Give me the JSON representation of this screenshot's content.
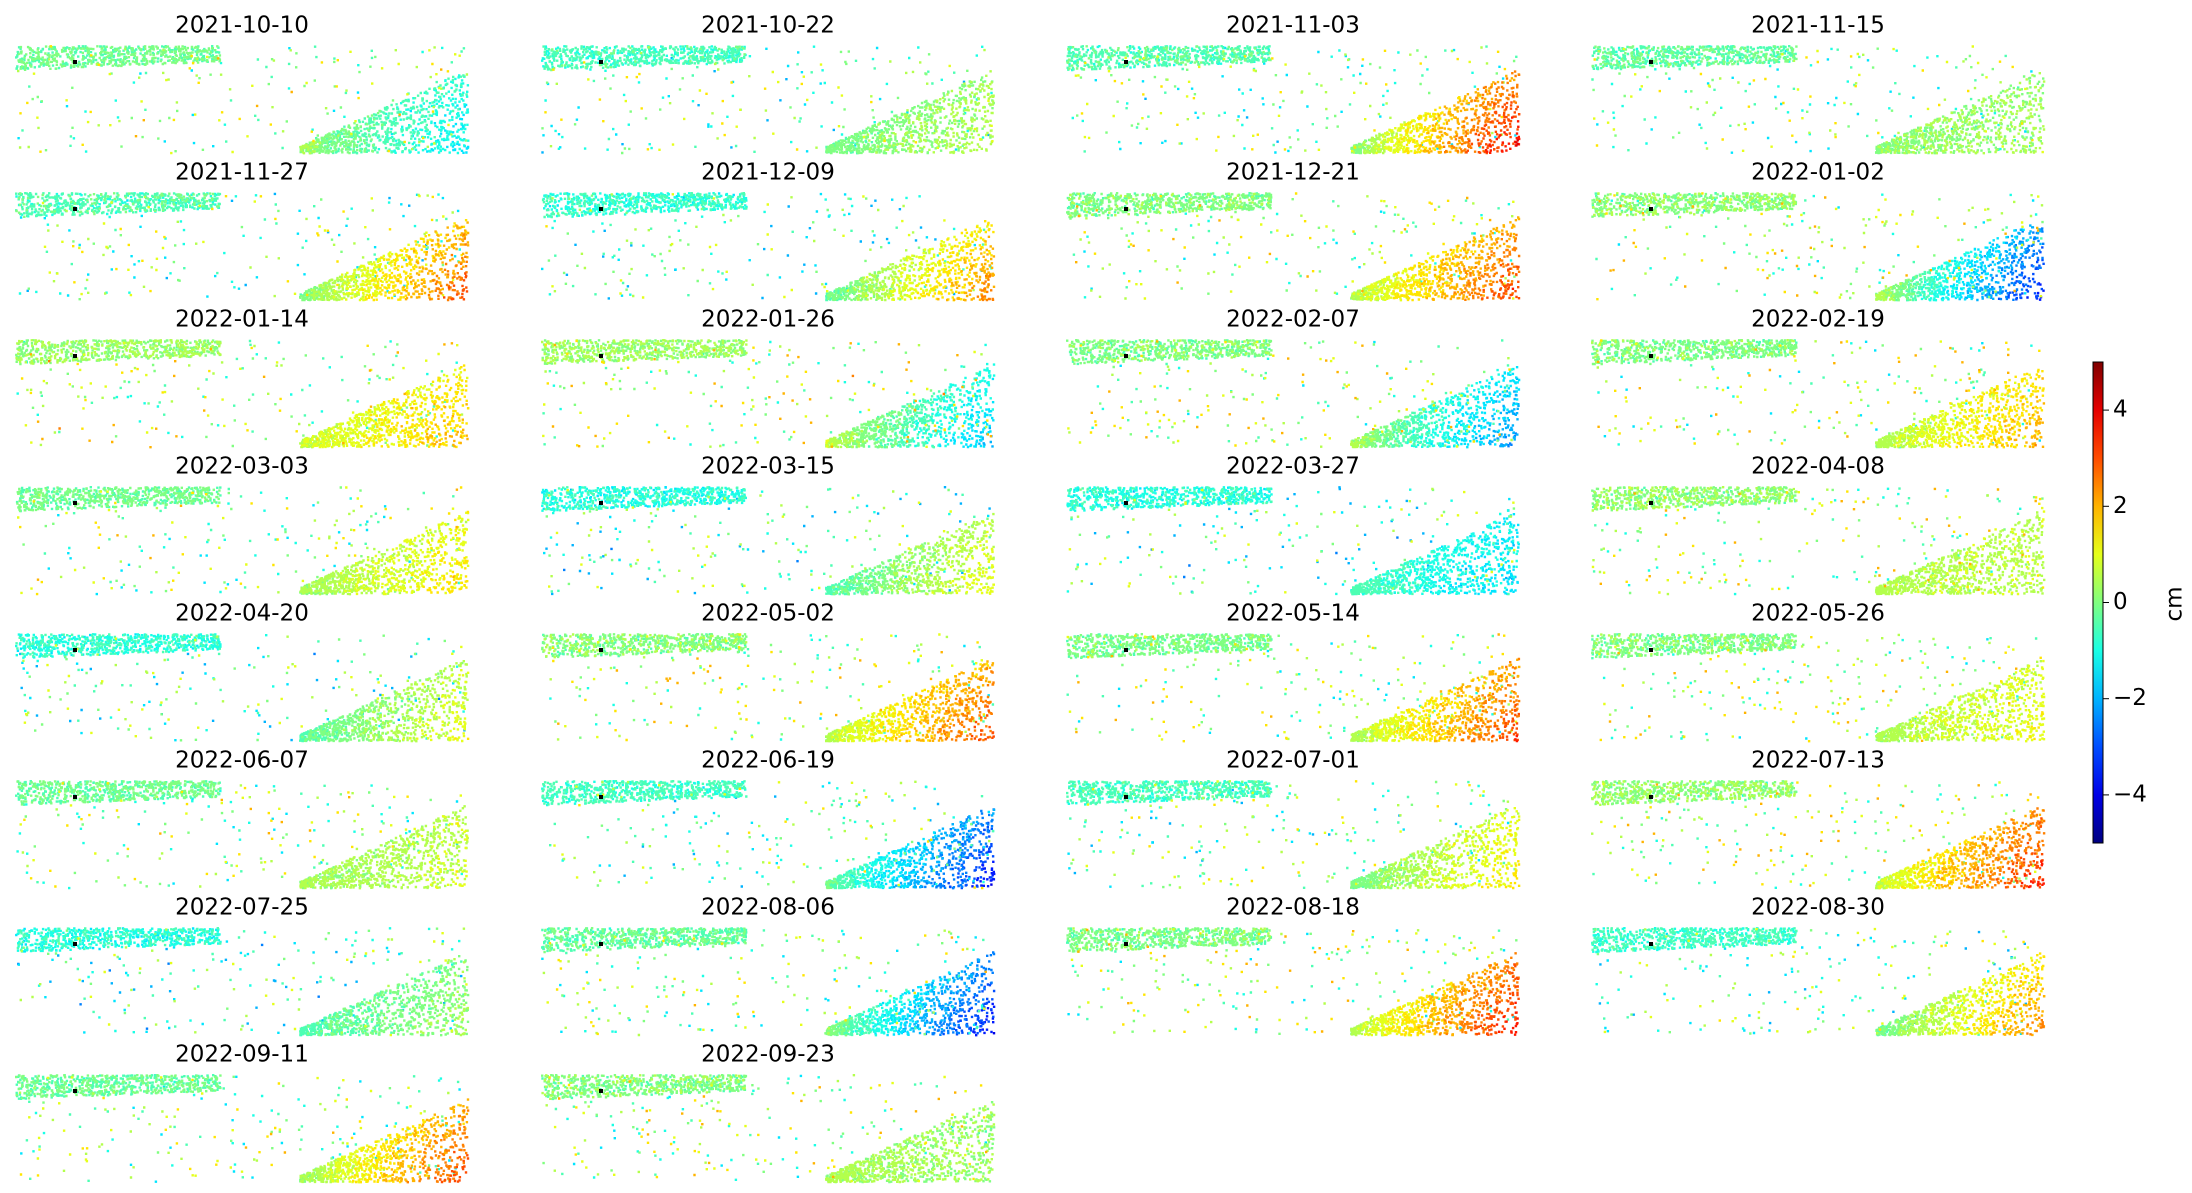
{
  "chart_data": {
    "type": "raster-grid",
    "panel_titles": [
      "2021-10-10",
      "2021-10-22",
      "2021-11-03",
      "2021-11-15",
      "2021-11-27",
      "2021-12-09",
      "2021-12-21",
      "2022-01-02",
      "2022-01-14",
      "2022-01-26",
      "2022-02-07",
      "2022-02-19",
      "2022-03-03",
      "2022-03-15",
      "2022-03-27",
      "2022-04-08",
      "2022-04-20",
      "2022-05-02",
      "2022-05-14",
      "2022-05-26",
      "2022-06-07",
      "2022-06-19",
      "2022-07-01",
      "2022-07-13",
      "2022-07-25",
      "2022-08-06",
      "2022-08-18",
      "2022-08-30",
      "2022-09-11",
      "2022-09-23"
    ],
    "colorbar": {
      "label": "cm",
      "colormap": "jet",
      "ylim": [
        -5,
        5
      ],
      "yticks": [
        {
          "value": -4,
          "label": "−4"
        },
        {
          "value": -2,
          "label": "−2"
        },
        0,
        2,
        4
      ]
    }
  }
}
